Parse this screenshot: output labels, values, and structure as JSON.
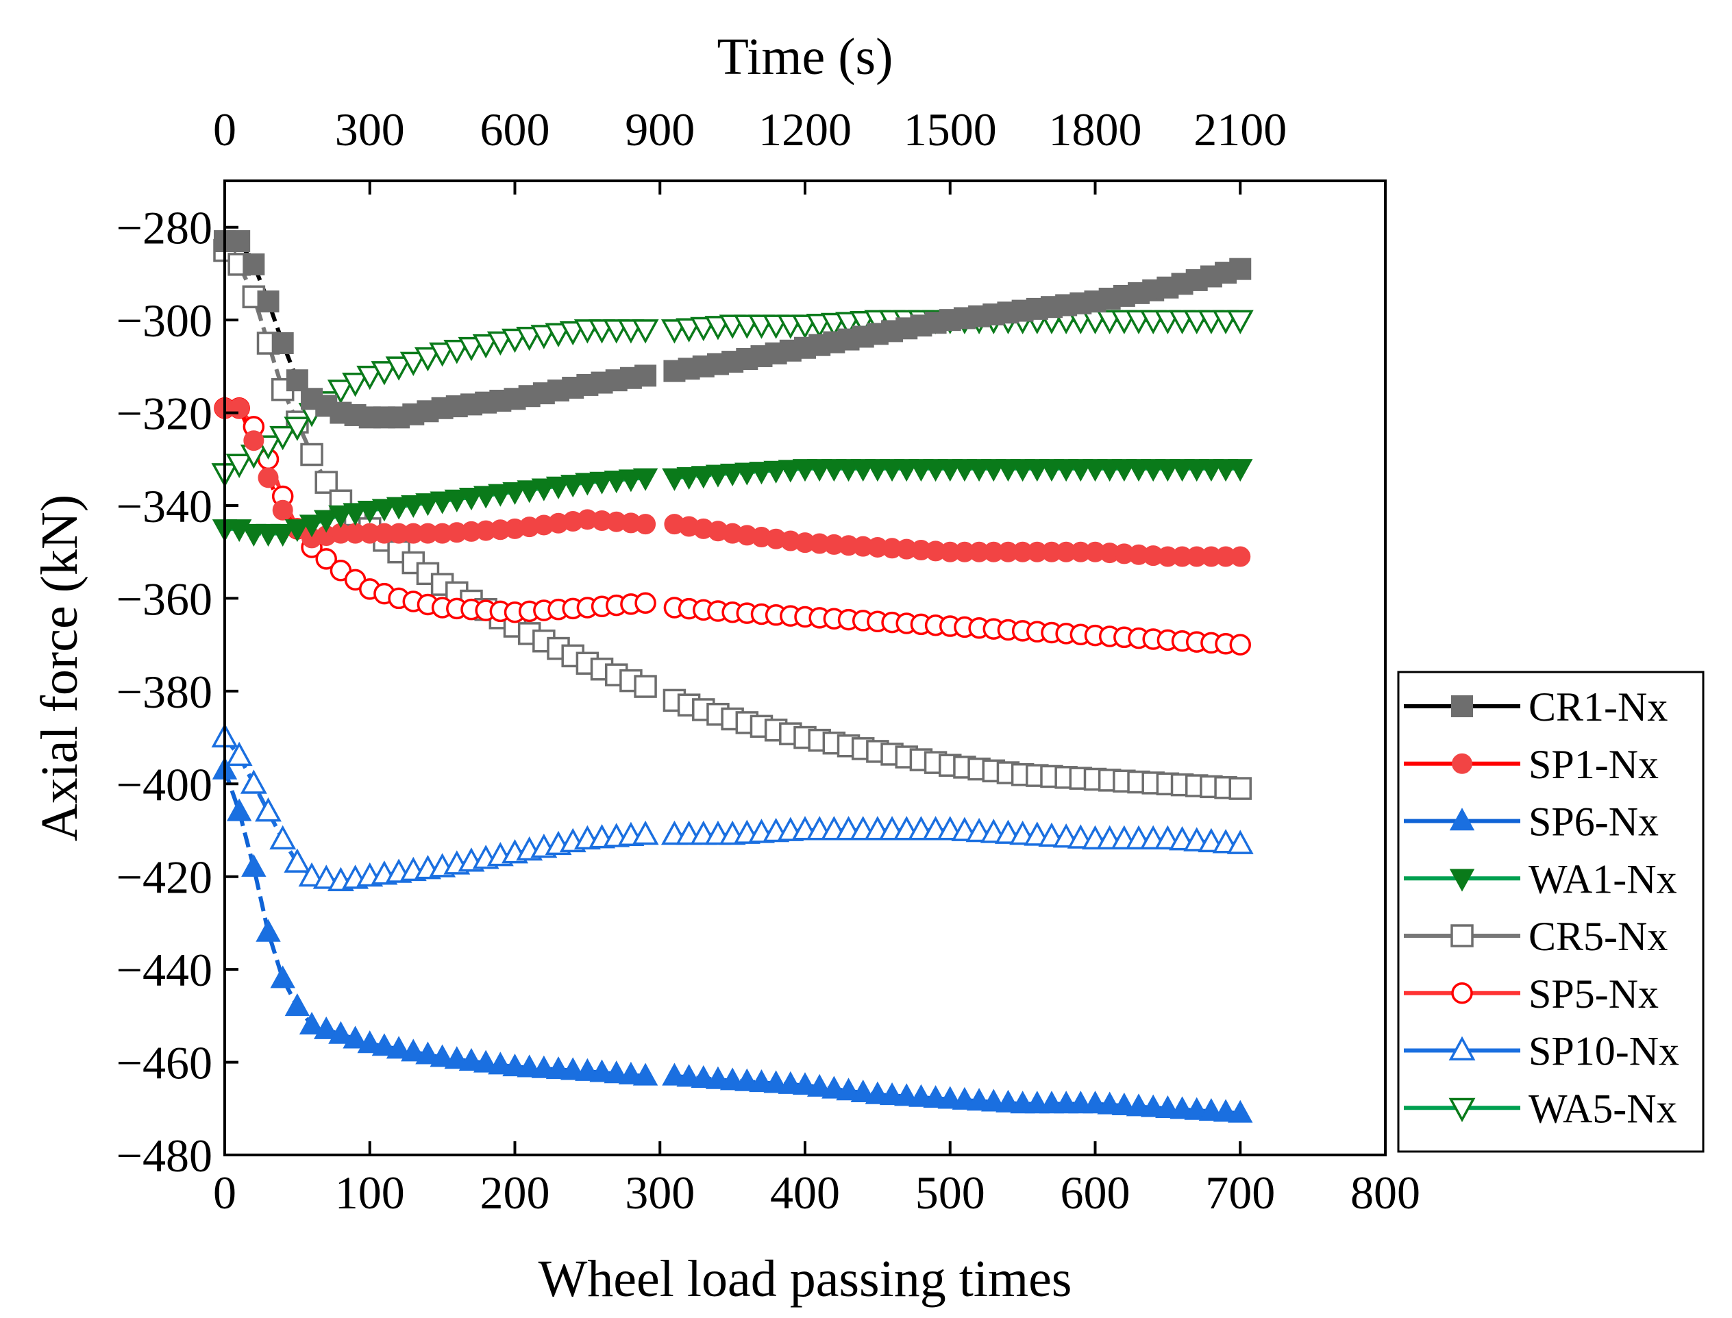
{
  "chart_data": {
    "type": "line",
    "xlabel": "Wheel load passing times",
    "ylabel": "Axial force (kN)",
    "x2label": "Time (s)",
    "xlim": [
      0,
      800
    ],
    "ylim": [
      -480,
      -270
    ],
    "x_ticks": [
      0,
      100,
      200,
      300,
      400,
      500,
      600,
      700,
      800
    ],
    "y_ticks": [
      -280,
      -300,
      -320,
      -340,
      -360,
      -380,
      -400,
      -420,
      -440,
      -460,
      -480
    ],
    "x2_ticks": [
      0,
      300,
      600,
      900,
      1200,
      1500,
      1800,
      2100
    ],
    "x_tick_labels": [
      "0",
      "100",
      "200",
      "300",
      "400",
      "500",
      "600",
      "700",
      "800"
    ],
    "y_tick_labels": [
      "−280",
      "−300",
      "−320",
      "−340",
      "−360",
      "−380",
      "−400",
      "−420",
      "−440",
      "−460",
      "−480"
    ],
    "x2_tick_labels": [
      "0",
      "300",
      "600",
      "900",
      "1200",
      "1500",
      "1800",
      "2100"
    ],
    "legend_position": "outside-right-bottom",
    "series": [
      {
        "name": "CR1-Nx",
        "line_color": "#000000",
        "marker_color": "#6e6e6e",
        "marker": "square",
        "filled": true,
        "points": [
          [
            0,
            -283
          ],
          [
            10,
            -283
          ],
          [
            20,
            -288
          ],
          [
            30,
            -296
          ],
          [
            40,
            -305
          ],
          [
            50,
            -313
          ],
          [
            60,
            -317
          ],
          [
            80,
            -320
          ],
          [
            100,
            -321
          ],
          [
            120,
            -321
          ],
          [
            150,
            -319
          ],
          [
            200,
            -317
          ],
          [
            250,
            -314
          ],
          [
            290,
            -312
          ],
          [
            310,
            -311
          ],
          [
            350,
            -309
          ],
          [
            400,
            -306
          ],
          [
            450,
            -303
          ],
          [
            500,
            -300
          ],
          [
            550,
            -298
          ],
          [
            600,
            -296
          ],
          [
            650,
            -293
          ],
          [
            700,
            -289
          ]
        ]
      },
      {
        "name": "SP1-Nx",
        "line_color": "#ff0000",
        "marker_color": "#f24444",
        "marker": "circle",
        "filled": true,
        "points": [
          [
            0,
            -319
          ],
          [
            10,
            -319
          ],
          [
            20,
            -326
          ],
          [
            30,
            -334
          ],
          [
            40,
            -341
          ],
          [
            50,
            -345
          ],
          [
            60,
            -347
          ],
          [
            80,
            -346
          ],
          [
            100,
            -346
          ],
          [
            150,
            -346
          ],
          [
            200,
            -345
          ],
          [
            250,
            -343
          ],
          [
            290,
            -344
          ],
          [
            310,
            -344
          ],
          [
            350,
            -346
          ],
          [
            400,
            -348
          ],
          [
            450,
            -349
          ],
          [
            500,
            -350
          ],
          [
            550,
            -350
          ],
          [
            600,
            -350
          ],
          [
            650,
            -351
          ],
          [
            700,
            -351
          ]
        ]
      },
      {
        "name": "SP6-Nx",
        "line_color": "#0f63d6",
        "marker_color": "#1a6fe0",
        "marker": "triangle-up",
        "filled": true,
        "points": [
          [
            0,
            -397
          ],
          [
            10,
            -406
          ],
          [
            20,
            -418
          ],
          [
            30,
            -432
          ],
          [
            40,
            -442
          ],
          [
            50,
            -448
          ],
          [
            60,
            -452
          ],
          [
            80,
            -454
          ],
          [
            100,
            -456
          ],
          [
            150,
            -459
          ],
          [
            200,
            -461
          ],
          [
            250,
            -462
          ],
          [
            290,
            -463
          ],
          [
            310,
            -463
          ],
          [
            350,
            -464
          ],
          [
            400,
            -465
          ],
          [
            450,
            -467
          ],
          [
            500,
            -468
          ],
          [
            550,
            -469
          ],
          [
            600,
            -469
          ],
          [
            650,
            -470
          ],
          [
            700,
            -471
          ]
        ]
      },
      {
        "name": "WA1-Nx",
        "line_color": "#00a050",
        "marker_color": "#0a7a1a",
        "marker": "triangle-down",
        "filled": true,
        "points": [
          [
            0,
            -345
          ],
          [
            10,
            -345
          ],
          [
            20,
            -346
          ],
          [
            30,
            -346
          ],
          [
            40,
            -346
          ],
          [
            50,
            -345
          ],
          [
            60,
            -344
          ],
          [
            80,
            -342
          ],
          [
            100,
            -341
          ],
          [
            150,
            -339
          ],
          [
            200,
            -337
          ],
          [
            250,
            -335
          ],
          [
            290,
            -334
          ],
          [
            310,
            -334
          ],
          [
            350,
            -333
          ],
          [
            400,
            -332
          ],
          [
            450,
            -332
          ],
          [
            500,
            -332
          ],
          [
            550,
            -332
          ],
          [
            600,
            -332
          ],
          [
            650,
            -332
          ],
          [
            700,
            -332
          ]
        ]
      },
      {
        "name": "CR5-Nx",
        "line_color": "#777777",
        "marker_color": "#6e6e6e",
        "marker": "square",
        "filled": false,
        "points": [
          [
            0,
            -285
          ],
          [
            10,
            -288
          ],
          [
            20,
            -295
          ],
          [
            30,
            -305
          ],
          [
            40,
            -315
          ],
          [
            50,
            -322
          ],
          [
            60,
            -329
          ],
          [
            70,
            -335
          ],
          [
            80,
            -339
          ],
          [
            100,
            -345
          ],
          [
            120,
            -350
          ],
          [
            150,
            -357
          ],
          [
            200,
            -366
          ],
          [
            250,
            -374
          ],
          [
            290,
            -379
          ],
          [
            310,
            -382
          ],
          [
            350,
            -386
          ],
          [
            400,
            -390
          ],
          [
            450,
            -393
          ],
          [
            500,
            -396
          ],
          [
            550,
            -398
          ],
          [
            600,
            -399
          ],
          [
            650,
            -400
          ],
          [
            700,
            -401
          ]
        ]
      },
      {
        "name": "SP5-Nx",
        "line_color": "#ff3333",
        "marker_color": "#ff0000",
        "marker": "circle",
        "filled": false,
        "points": [
          [
            0,
            -319
          ],
          [
            10,
            -319
          ],
          [
            20,
            -323
          ],
          [
            30,
            -330
          ],
          [
            40,
            -338
          ],
          [
            50,
            -345
          ],
          [
            60,
            -349
          ],
          [
            80,
            -354
          ],
          [
            100,
            -358
          ],
          [
            120,
            -360
          ],
          [
            150,
            -362
          ],
          [
            200,
            -363
          ],
          [
            250,
            -362
          ],
          [
            290,
            -361
          ],
          [
            310,
            -362
          ],
          [
            350,
            -363
          ],
          [
            400,
            -364
          ],
          [
            450,
            -365
          ],
          [
            500,
            -366
          ],
          [
            550,
            -367
          ],
          [
            600,
            -368
          ],
          [
            650,
            -369
          ],
          [
            700,
            -370
          ]
        ]
      },
      {
        "name": "SP10-Nx",
        "line_color": "#1a6fe0",
        "marker_color": "#1a6fe0",
        "marker": "triangle-up",
        "filled": false,
        "points": [
          [
            0,
            -390
          ],
          [
            10,
            -394
          ],
          [
            20,
            -400
          ],
          [
            30,
            -406
          ],
          [
            40,
            -412
          ],
          [
            50,
            -417
          ],
          [
            60,
            -420
          ],
          [
            80,
            -421
          ],
          [
            100,
            -420
          ],
          [
            150,
            -418
          ],
          [
            200,
            -415
          ],
          [
            250,
            -412
          ],
          [
            290,
            -411
          ],
          [
            310,
            -411
          ],
          [
            350,
            -411
          ],
          [
            400,
            -410
          ],
          [
            450,
            -410
          ],
          [
            500,
            -410
          ],
          [
            550,
            -411
          ],
          [
            600,
            -412
          ],
          [
            650,
            -412
          ],
          [
            700,
            -413
          ]
        ]
      },
      {
        "name": "WA5-Nx",
        "line_color": "#00a050",
        "marker_color": "#0a7a1a",
        "marker": "triangle-down",
        "filled": false,
        "points": [
          [
            0,
            -333
          ],
          [
            10,
            -331
          ],
          [
            20,
            -329
          ],
          [
            30,
            -327
          ],
          [
            40,
            -325
          ],
          [
            50,
            -323
          ],
          [
            60,
            -320
          ],
          [
            80,
            -315
          ],
          [
            100,
            -312
          ],
          [
            150,
            -307
          ],
          [
            200,
            -304
          ],
          [
            250,
            -302
          ],
          [
            290,
            -302
          ],
          [
            310,
            -302
          ],
          [
            350,
            -301
          ],
          [
            400,
            -301
          ],
          [
            450,
            -300
          ],
          [
            500,
            -300
          ],
          [
            550,
            -300
          ],
          [
            600,
            -300
          ],
          [
            650,
            -300
          ],
          [
            700,
            -300
          ]
        ]
      }
    ]
  }
}
